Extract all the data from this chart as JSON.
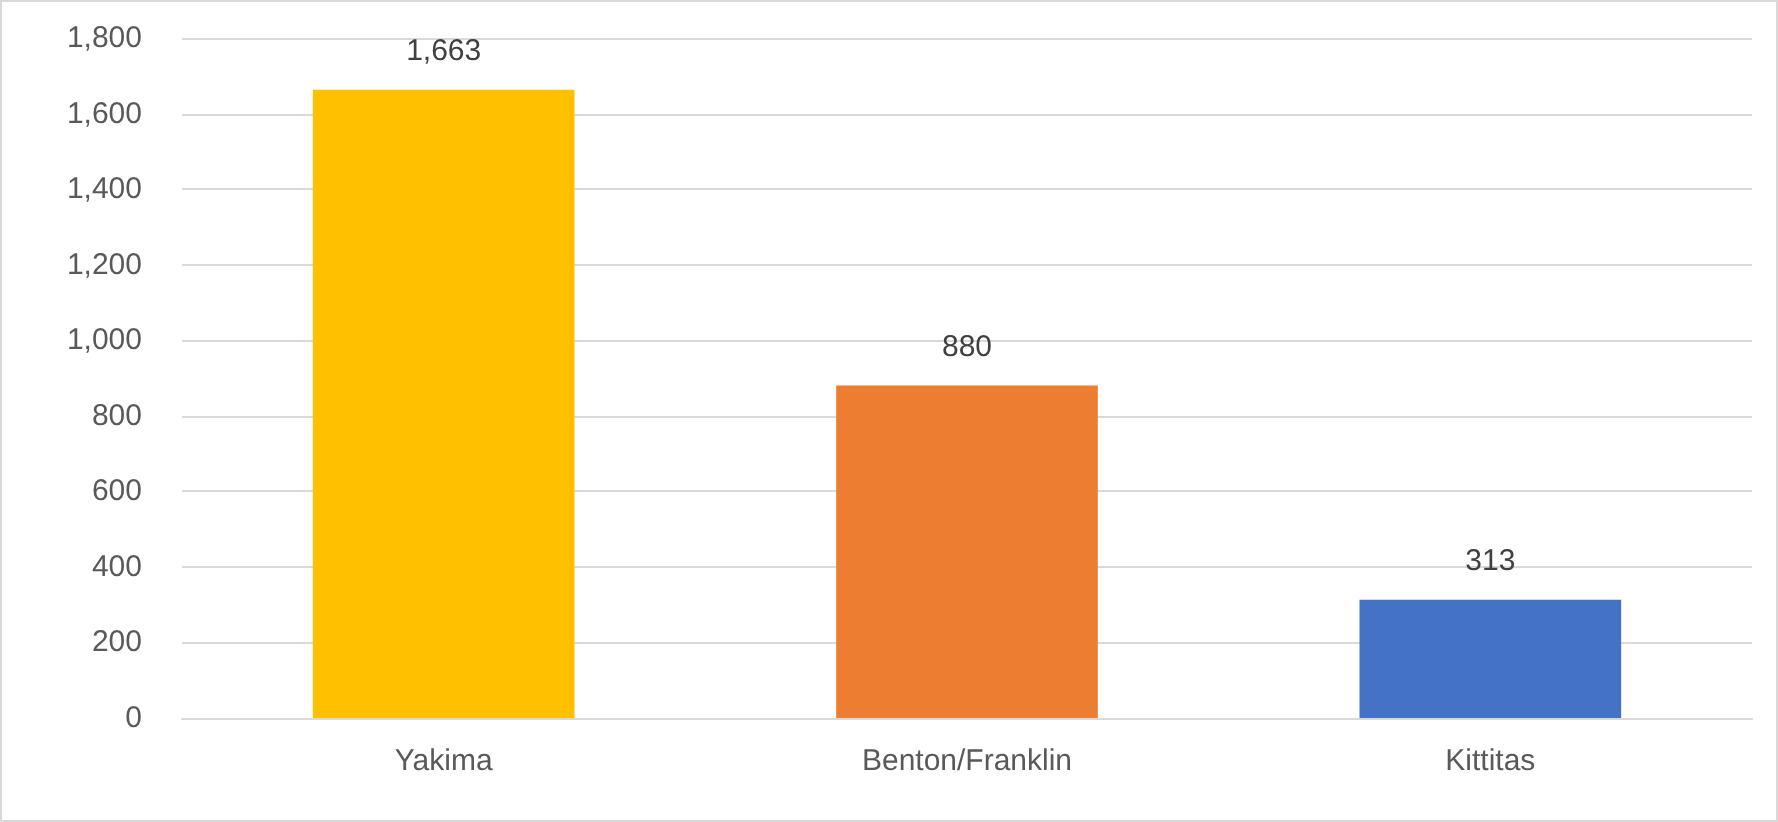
{
  "chart_data": {
    "type": "bar",
    "categories": [
      "Yakima",
      "Benton/Franklin",
      "Kittitas"
    ],
    "values": [
      1663,
      880,
      313
    ],
    "colors": [
      "#ffc000",
      "#ed7d31",
      "#4472c4"
    ],
    "value_labels": [
      "1,663",
      "880",
      "313"
    ],
    "ylim": [
      0,
      1800
    ],
    "yticks": [
      0,
      200,
      400,
      600,
      800,
      {
        "value": 1000,
        "label": "1,000"
      },
      {
        "value": 1200,
        "label": "1,200"
      },
      {
        "value": 1400,
        "label": "1,400"
      },
      {
        "value": 1600,
        "label": "1,600"
      },
      {
        "value": 1800,
        "label": "1,800"
      }
    ],
    "grid": "y"
  }
}
